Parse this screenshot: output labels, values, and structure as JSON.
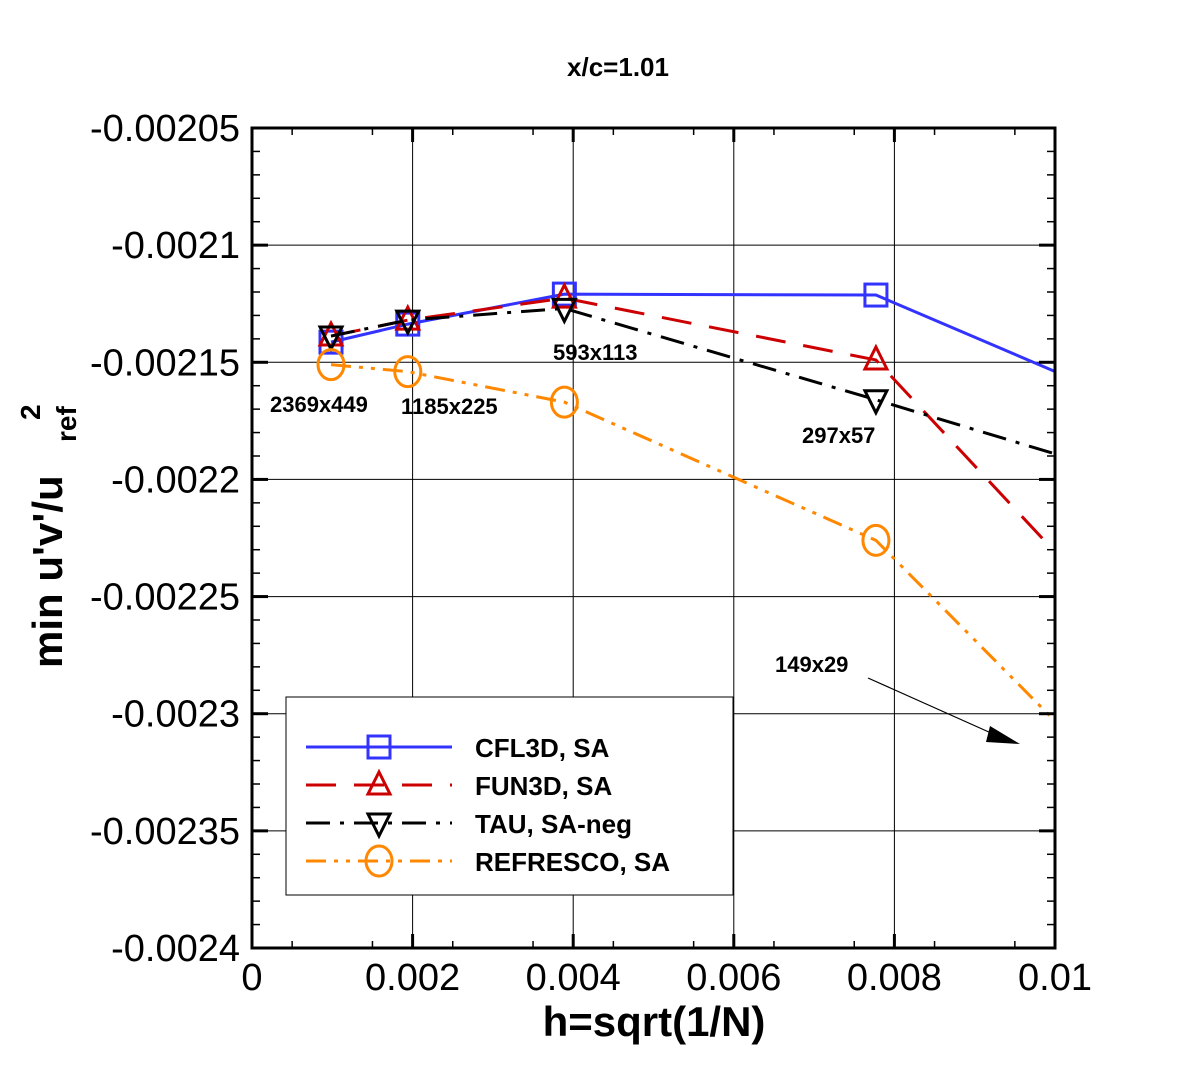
{
  "chart_data": {
    "type": "line",
    "title": "x/c=1.01",
    "xlabel": "h=sqrt(1/N)",
    "ylabel_main": "min u'v'/u",
    "ylabel_sub": "ref",
    "ylabel_sup": "2",
    "xlim": [
      0,
      0.01
    ],
    "ylim": [
      -0.0024,
      -0.00205
    ],
    "xticks": [
      0,
      0.002,
      0.004,
      0.006,
      0.008,
      0.01
    ],
    "xtick_labels": [
      "0",
      "0.002",
      "0.004",
      "0.006",
      "0.008",
      "0.01"
    ],
    "yticks": [
      -0.00205,
      -0.0021,
      -0.00215,
      -0.0022,
      -0.00225,
      -0.0023,
      -0.00235,
      -0.0024
    ],
    "ytick_labels": [
      "-0.00205",
      "-0.0021",
      "-0.00215",
      "-0.0022",
      "-0.00225",
      "-0.0023",
      "-0.00235",
      "-0.0024"
    ],
    "grid": true,
    "legend_placement": "bottom-left",
    "x": [
      0.000984,
      0.00194,
      0.00389,
      0.00777,
      0.0152
    ],
    "series": [
      {
        "name": "CFL3D, SA",
        "color": "#3333ff",
        "marker": "square",
        "dash": "solid",
        "values": [
          -0.0021414,
          -0.0021337,
          -0.0021209,
          -0.0021213,
          -0.00223
        ]
      },
      {
        "name": "FUN3D, SA",
        "color": "#cc0000",
        "marker": "triangle-up",
        "dash": "dashed",
        "values": [
          -0.0021388,
          -0.002132,
          -0.0021226,
          -0.002149,
          -0.002422
        ]
      },
      {
        "name": "TAU, SA-neg",
        "color": "#000000",
        "marker": "triangle-down",
        "dash": "dashdot",
        "values": [
          -0.0021388,
          -0.002132,
          -0.002127,
          -0.002166,
          -0.002243
        ]
      },
      {
        "name": "REFRESCO, SA",
        "color": "#ff8800",
        "marker": "circle",
        "dash": "dashdotdot",
        "values": [
          -0.002151,
          -0.002154,
          -0.002167,
          -0.002226,
          -0.002483
        ]
      }
    ],
    "annotations": [
      "2369x449",
      "1185x225",
      "593x113",
      "297x57",
      "149x29"
    ]
  }
}
